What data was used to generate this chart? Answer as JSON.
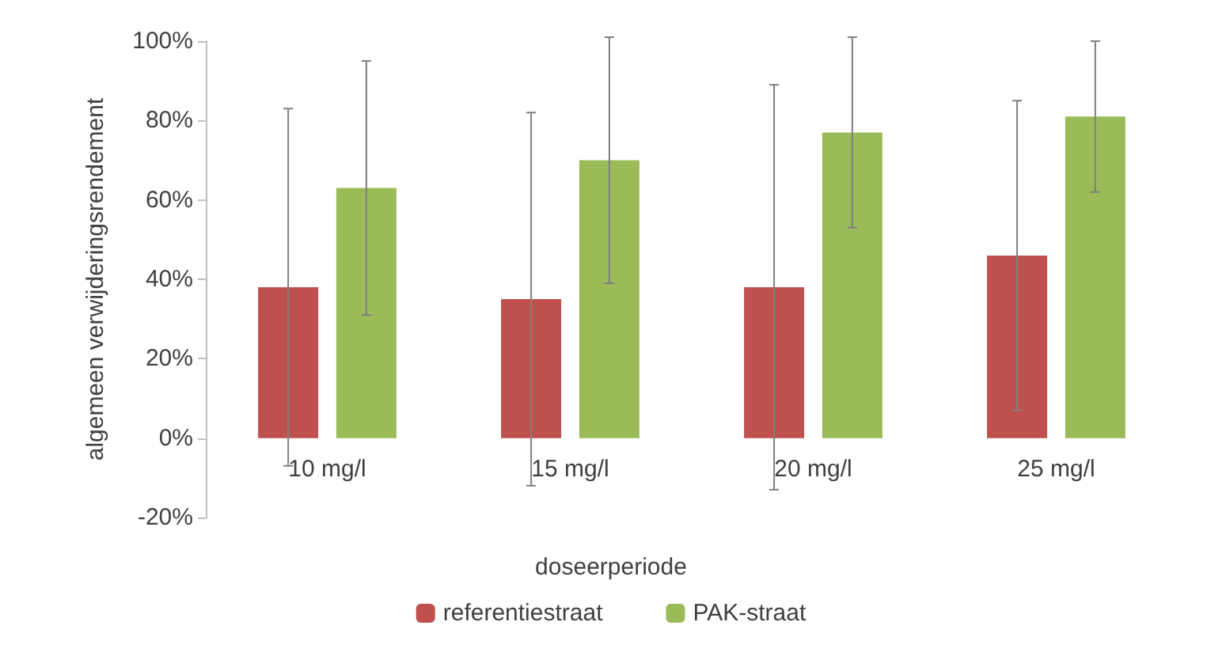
{
  "chart_data": {
    "type": "bar",
    "categories": [
      "10 mg/l",
      "15 mg/l",
      "20 mg/l",
      "25 mg/l"
    ],
    "xlabel": "doseerperiode",
    "ylabel": "algemeen verwijderingsrendement",
    "ylim": [
      -20,
      100
    ],
    "yticks": [
      {
        "value": -20,
        "label": "-20%"
      },
      {
        "value": 0,
        "label": "0%"
      },
      {
        "value": 20,
        "label": "20%"
      },
      {
        "value": 40,
        "label": "40%"
      },
      {
        "value": 60,
        "label": "60%"
      },
      {
        "value": 80,
        "label": "80%"
      },
      {
        "value": 100,
        "label": "100%"
      }
    ],
    "series": [
      {
        "name": "referentiestraat",
        "color": "#c0504d",
        "values": [
          38,
          35,
          38,
          46
        ],
        "errors": [
          45,
          47,
          51,
          39
        ]
      },
      {
        "name": "PAK-straat",
        "color": "#9bbb59",
        "values": [
          63,
          70,
          77,
          81
        ],
        "errors": [
          32,
          31,
          24,
          19
        ]
      }
    ],
    "grid": false,
    "legend": "bottom"
  }
}
